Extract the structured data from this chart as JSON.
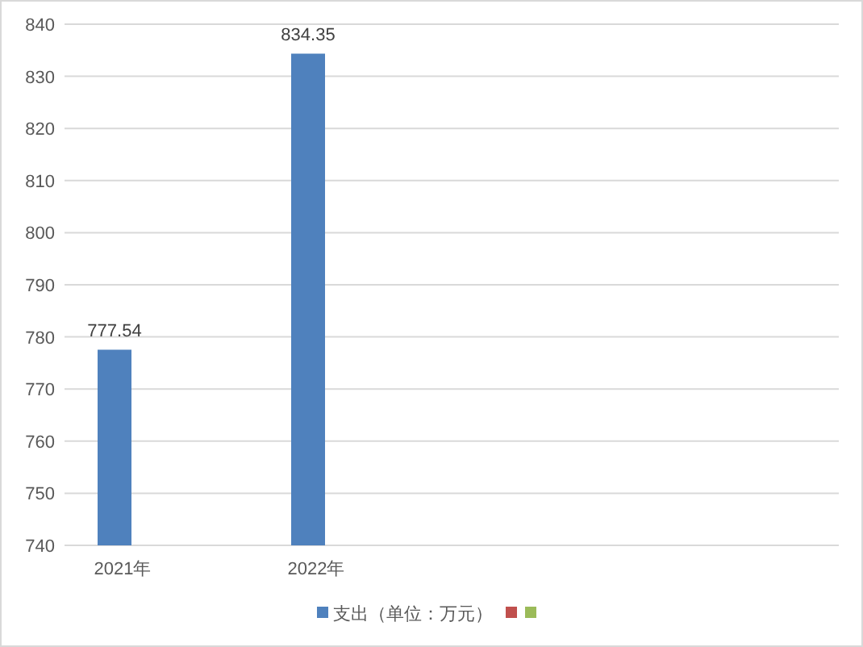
{
  "chart_data": {
    "type": "bar",
    "categories": [
      "2021年",
      "2022年",
      null,
      null
    ],
    "series": [
      {
        "name": "支出（单位：万元）",
        "color": "#4f81bd",
        "values": [
          777.54,
          834.35,
          null,
          null
        ]
      },
      {
        "color": "#c0504d",
        "values": [
          null,
          null,
          null,
          null
        ]
      },
      {
        "color": "#9bbb59",
        "values": [
          null,
          null,
          null,
          null
        ]
      }
    ],
    "ylim": [
      740,
      840
    ],
    "yticks": [
      740,
      750,
      760,
      770,
      780,
      790,
      800,
      810,
      820,
      830,
      840
    ],
    "grid": "y",
    "data_labels": true,
    "legend": "bottom"
  }
}
